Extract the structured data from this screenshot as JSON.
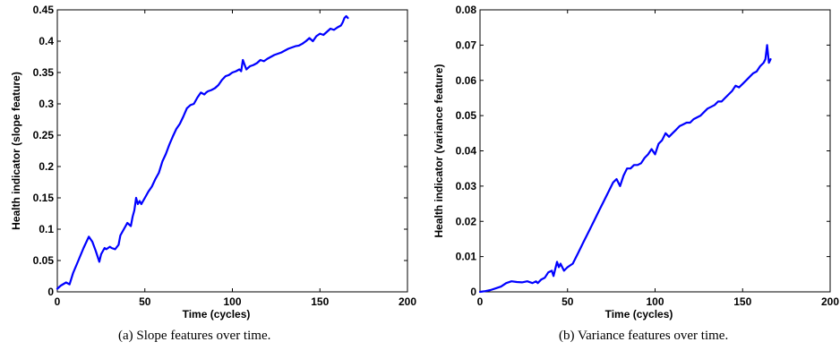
{
  "chart_data": [
    {
      "type": "line",
      "xlabel": "Time (cycles)",
      "ylabel": "Health indicator (slope feature)",
      "xlim": [
        0,
        200
      ],
      "ylim": [
        0,
        0.45
      ],
      "xticks": [
        "0",
        "50",
        "100",
        "150",
        "200"
      ],
      "yticks": [
        "0",
        "0.05",
        "0.1",
        "0.15",
        "0.2",
        "0.25",
        "0.3",
        "0.35",
        "0.4",
        "0.45"
      ],
      "grid": false,
      "color": "#0000ff",
      "series": [
        {
          "x": [
            0,
            2,
            5,
            7,
            9,
            12,
            15,
            18,
            20,
            22,
            24,
            25,
            27,
            28,
            30,
            31,
            33,
            35,
            36,
            38,
            40,
            42,
            43,
            44,
            45,
            46,
            47,
            48,
            50,
            52,
            54,
            56,
            58,
            60,
            62,
            64,
            66,
            68,
            70,
            72,
            74,
            76,
            78,
            80,
            82,
            84,
            85,
            86,
            88,
            90,
            92,
            94,
            96,
            98,
            100,
            102,
            104,
            105,
            106,
            108,
            110,
            112,
            114,
            116,
            118,
            120,
            122,
            124,
            126,
            128,
            130,
            132,
            134,
            136,
            138,
            140,
            142,
            144,
            146,
            148,
            150,
            152,
            154,
            156,
            158,
            160,
            162,
            163,
            164,
            165,
            166
          ],
          "y": [
            0.005,
            0.01,
            0.015,
            0.012,
            0.03,
            0.05,
            0.07,
            0.088,
            0.08,
            0.065,
            0.048,
            0.06,
            0.07,
            0.068,
            0.072,
            0.07,
            0.068,
            0.075,
            0.09,
            0.1,
            0.11,
            0.105,
            0.12,
            0.13,
            0.15,
            0.14,
            0.145,
            0.14,
            0.15,
            0.16,
            0.168,
            0.18,
            0.19,
            0.208,
            0.22,
            0.235,
            0.248,
            0.26,
            0.268,
            0.28,
            0.293,
            0.298,
            0.3,
            0.31,
            0.318,
            0.315,
            0.318,
            0.32,
            0.322,
            0.325,
            0.33,
            0.338,
            0.344,
            0.346,
            0.35,
            0.352,
            0.355,
            0.352,
            0.37,
            0.355,
            0.36,
            0.362,
            0.365,
            0.37,
            0.368,
            0.372,
            0.375,
            0.378,
            0.38,
            0.382,
            0.385,
            0.388,
            0.39,
            0.392,
            0.393,
            0.396,
            0.4,
            0.405,
            0.4,
            0.408,
            0.412,
            0.41,
            0.415,
            0.42,
            0.418,
            0.422,
            0.425,
            0.43,
            0.437,
            0.44,
            0.437
          ]
        }
      ]
    },
    {
      "type": "line",
      "xlabel": "Time (cycles)",
      "ylabel": "Health indicator (variance feature)",
      "xlim": [
        0,
        200
      ],
      "ylim": [
        0,
        0.08
      ],
      "xticks": [
        "0",
        "50",
        "100",
        "150",
        "200"
      ],
      "yticks": [
        "0",
        "0.01",
        "0.02",
        "0.03",
        "0.04",
        "0.05",
        "0.06",
        "0.07",
        "0.08"
      ],
      "grid": false,
      "color": "#0000ff",
      "series": [
        {
          "x": [
            0,
            3,
            6,
            9,
            12,
            15,
            18,
            21,
            24,
            27,
            30,
            32,
            33,
            35,
            37,
            39,
            41,
            42,
            44,
            45,
            46,
            48,
            50,
            53,
            56,
            59,
            62,
            65,
            68,
            71,
            74,
            76,
            78,
            80,
            82,
            84,
            86,
            88,
            90,
            92,
            94,
            96,
            98,
            100,
            102,
            104,
            106,
            108,
            110,
            112,
            114,
            116,
            118,
            120,
            122,
            124,
            126,
            128,
            130,
            132,
            134,
            136,
            138,
            140,
            142,
            144,
            146,
            148,
            150,
            152,
            154,
            156,
            158,
            160,
            162,
            163,
            164,
            165,
            166
          ],
          "y": [
            0.0,
            0.0002,
            0.0005,
            0.001,
            0.0015,
            0.0025,
            0.003,
            0.0028,
            0.0027,
            0.003,
            0.0025,
            0.003,
            0.0025,
            0.0035,
            0.004,
            0.0055,
            0.006,
            0.0045,
            0.0085,
            0.007,
            0.008,
            0.006,
            0.007,
            0.008,
            0.011,
            0.014,
            0.017,
            0.02,
            0.023,
            0.026,
            0.029,
            0.031,
            0.032,
            0.03,
            0.033,
            0.035,
            0.035,
            0.036,
            0.036,
            0.0365,
            0.038,
            0.039,
            0.0405,
            0.039,
            0.042,
            0.043,
            0.045,
            0.044,
            0.045,
            0.046,
            0.047,
            0.0475,
            0.048,
            0.048,
            0.049,
            0.0495,
            0.05,
            0.051,
            0.052,
            0.0525,
            0.053,
            0.054,
            0.054,
            0.055,
            0.056,
            0.057,
            0.0585,
            0.058,
            0.059,
            0.06,
            0.061,
            0.062,
            0.0625,
            0.064,
            0.065,
            0.066,
            0.07,
            0.065,
            0.066
          ]
        }
      ]
    }
  ],
  "captions": {
    "a": "(a) Slope features over time.",
    "b": "(b) Variance features over time."
  }
}
